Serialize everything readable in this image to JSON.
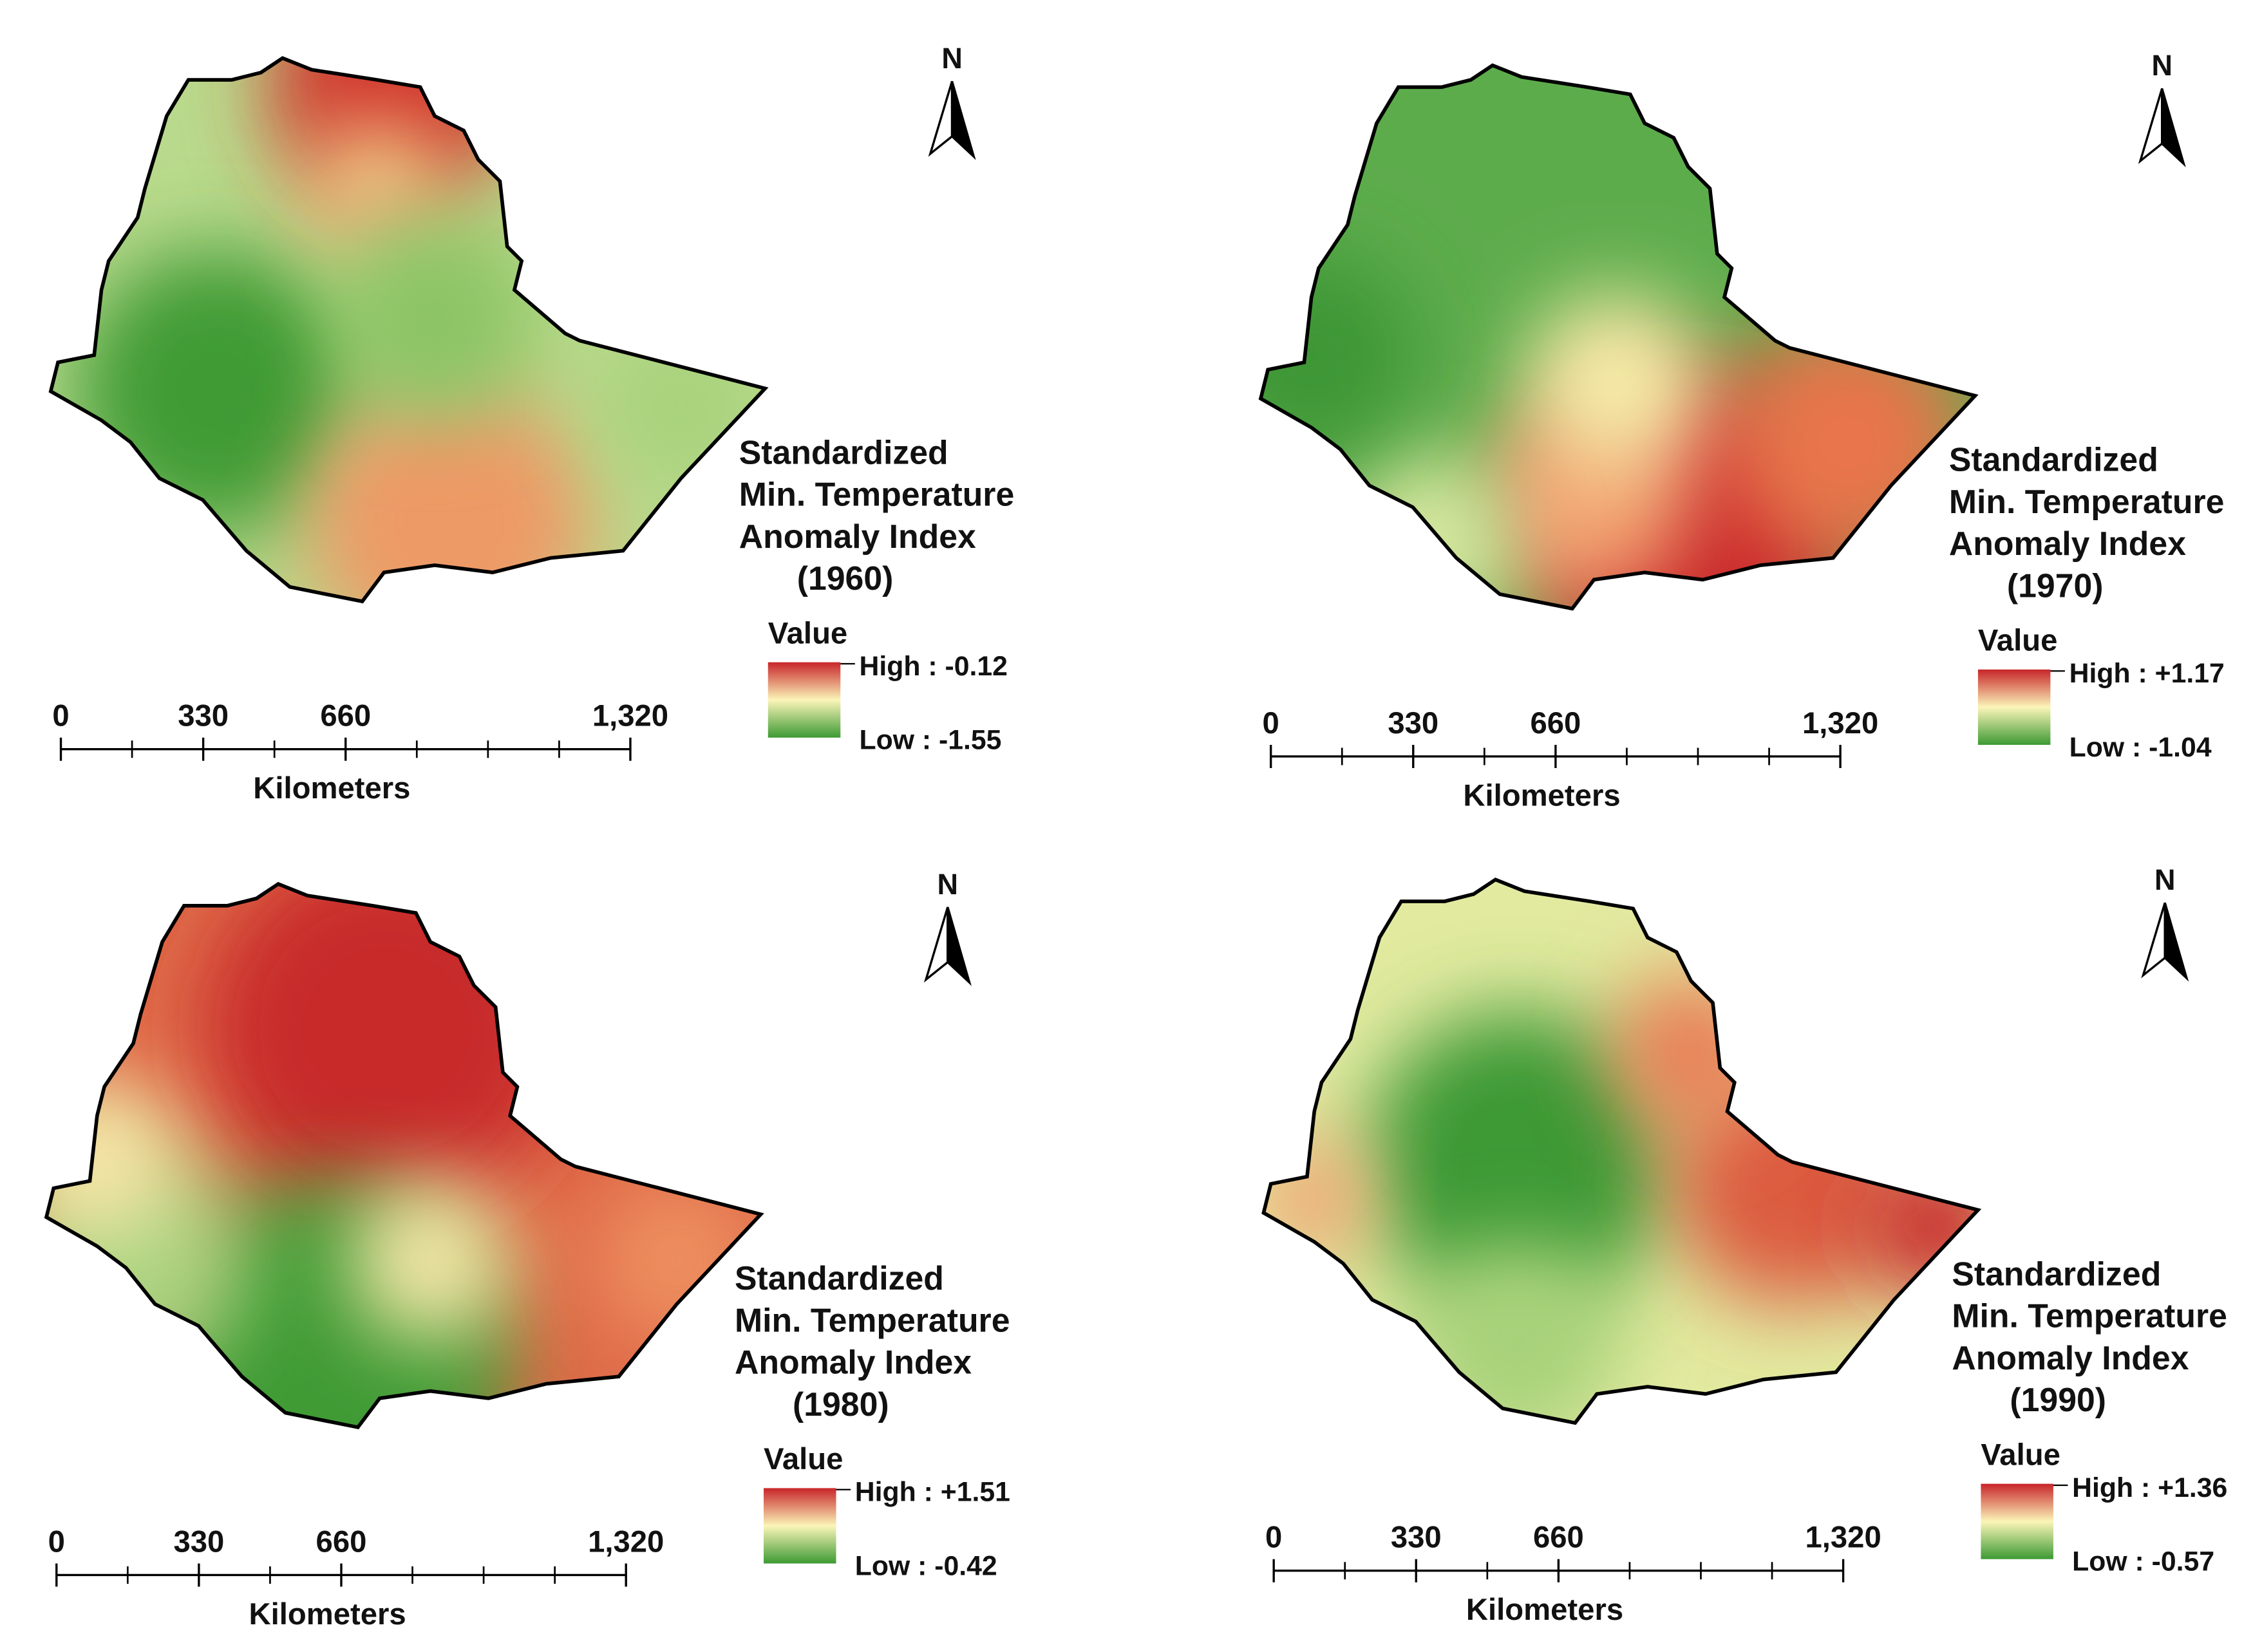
{
  "panels": [
    {
      "north": "N",
      "title": [
        "Standardized",
        "Min. Temperature",
        "Anomaly Index",
        "(1960)"
      ],
      "legend": {
        "title": "Value",
        "high": "High : -0.12",
        "low": "Low : -1.55"
      },
      "scale": {
        "ticks": [
          0,
          330,
          660,
          {
            "value": 1320,
            "label": "1,320"
          }
        ],
        "unit": "Kilometers"
      }
    },
    {
      "north": "N",
      "title": [
        "Standardized",
        "Min. Temperature",
        "Anomaly Index",
        "(1970)"
      ],
      "legend": {
        "title": "Value",
        "high": "High : +1.17",
        "low": "Low : -1.04"
      },
      "scale": {
        "ticks": [
          0,
          330,
          660,
          {
            "value": 1320,
            "label": "1,320"
          }
        ],
        "unit": "Kilometers"
      }
    },
    {
      "north": "N",
      "title": [
        "Standardized",
        "Min. Temperature",
        "Anomaly Index",
        "(1980)"
      ],
      "legend": {
        "title": "Value",
        "high": "High : +1.51",
        "low": "Low : -0.42"
      },
      "scale": {
        "ticks": [
          0,
          330,
          660,
          {
            "value": 1320,
            "label": "1,320"
          }
        ],
        "unit": "Kilometers"
      }
    },
    {
      "north": "N",
      "title": [
        "Standardized",
        "Min. Temperature",
        "Anomaly Index",
        "(1990)"
      ],
      "legend": {
        "title": "Value",
        "high": "High : +1.36",
        "low": "Low : -0.57"
      },
      "scale": {
        "ticks": [
          0,
          330,
          660,
          {
            "value": 1320,
            "label": "1,320"
          }
        ],
        "unit": "Kilometers"
      }
    }
  ]
}
